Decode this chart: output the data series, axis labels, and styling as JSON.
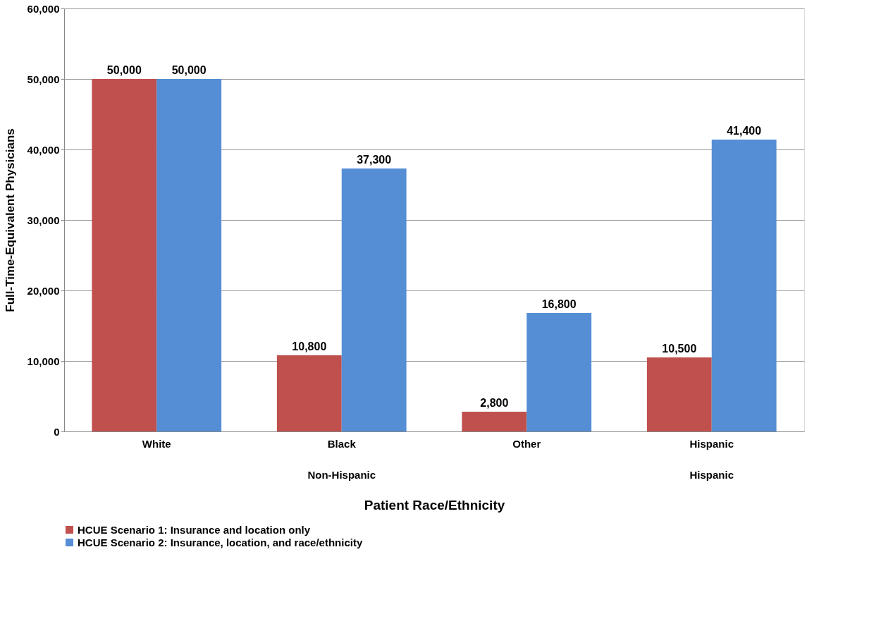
{
  "chart_data": {
    "type": "bar",
    "xlabel": "Patient Race/Ethnicity",
    "ylabel": "Full-Time-Equivalent Physicians",
    "categories": [
      "White",
      "Black",
      "Other",
      "Hispanic"
    ],
    "series": [
      {
        "name": "HCUE Scenario 1: Insurance and location only",
        "color": "#c0504d",
        "values": [
          50000,
          10800,
          2800,
          10500
        ],
        "value_labels": [
          "50,000",
          "10,800",
          "2,800",
          "10,500"
        ]
      },
      {
        "name": "HCUE Scenario 2: Insurance, location, and race/ethnicity",
        "color": "#558ed5",
        "values": [
          50000,
          37300,
          16800,
          41400
        ],
        "value_labels": [
          "50,000",
          "37,300",
          "16,800",
          "41,400"
        ]
      }
    ],
    "annotations": [
      "Non-Hispanic",
      "Hispanic"
    ],
    "ylim": [
      0,
      60000
    ],
    "yticks": [
      0,
      {
        "value": 10000,
        "label": "10,000"
      },
      {
        "value": 20000,
        "label": "20,000"
      },
      {
        "value": 30000,
        "label": "30,000"
      },
      {
        "value": 40000,
        "label": "40,000"
      },
      {
        "value": 50000,
        "label": "50,000"
      },
      {
        "value": 60000,
        "label": "60,000"
      }
    ],
    "grid": "y",
    "legend": "bottom"
  }
}
